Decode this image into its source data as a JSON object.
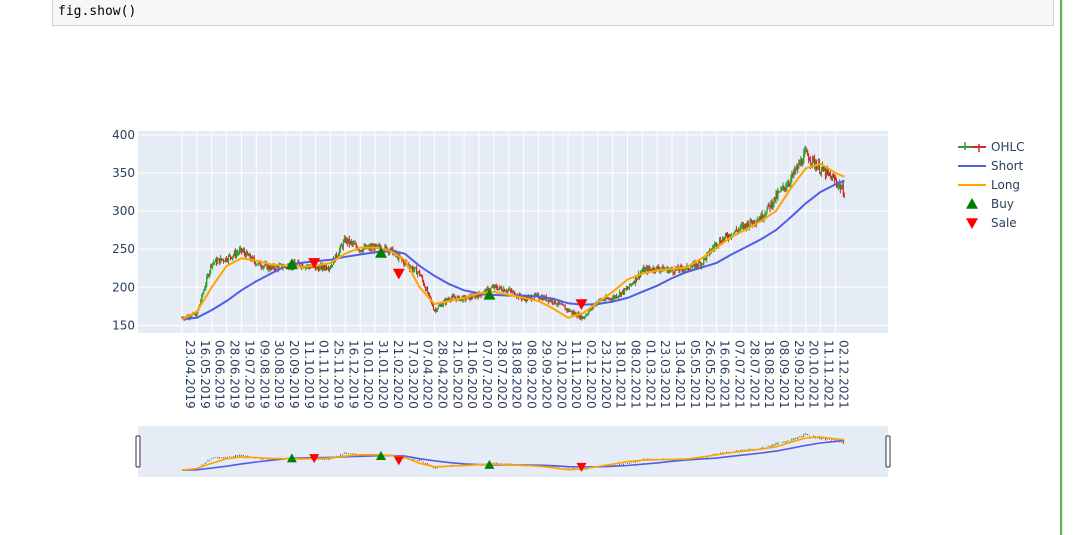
{
  "notebook": {
    "code_line": "fig.show()"
  },
  "colors": {
    "plot_bg": "#e5ecf6",
    "grid": "#ffffff",
    "up": "#2ca02c",
    "down": "#d62728",
    "short": "#4f5ee6",
    "long": "#ffa500",
    "buy": "#008000",
    "sale": "#ff0000",
    "tick_text": "#2a3f5f",
    "cell_border": "#cfcfcf",
    "cell_bg": "#f7f7f7",
    "accent_rule": "#5cb85c"
  },
  "chart_data": {
    "type": "candlestick",
    "xaxis_type": "category",
    "yaxis": {
      "range": [
        140,
        405
      ],
      "ticks": [
        150,
        200,
        250,
        300,
        350,
        400
      ]
    },
    "legend": {
      "position": "top-right",
      "items": [
        {
          "name": "OHLC",
          "symbol": "candle"
        },
        {
          "name": "Short",
          "symbol": "line",
          "color": "#4f5ee6"
        },
        {
          "name": "Long",
          "symbol": "line",
          "color": "#ffa500"
        },
        {
          "name": "Buy",
          "symbol": "triangle-up",
          "color": "#008000"
        },
        {
          "name": "Sale",
          "symbol": "triangle-down",
          "color": "#ff0000"
        }
      ]
    },
    "x_tick_labels": [
      "23.04.2019",
      "16.05.2019",
      "06.06.2019",
      "28.06.2019",
      "19.07.2019",
      "09.08.2019",
      "30.08.2019",
      "20.09.2019",
      "11.10.2019",
      "01.11.2019",
      "25.11.2019",
      "16.12.2019",
      "10.01.2020",
      "31.01.2020",
      "21.02.2020",
      "17.03.2020",
      "07.04.2020",
      "28.04.2020",
      "21.05.2020",
      "11.06.2020",
      "07.07.2020",
      "28.07.2020",
      "18.08.2020",
      "08.09.2020",
      "29.09.2020",
      "20.10.2020",
      "11.11.2020",
      "02.12.2020",
      "23.12.2020",
      "18.01.2021",
      "08.02.2021",
      "01.03.2021",
      "23.03.2021",
      "13.04.2021",
      "05.05.2021",
      "26.05.2021",
      "16.06.2021",
      "07.07.2021",
      "28.07.2021",
      "18.08.2021",
      "08.09.2021",
      "29.09.2021",
      "20.10.2021",
      "11.11.2021",
      "02.12.2021"
    ],
    "close_anchors": [
      [
        0,
        160
      ],
      [
        1,
        165
      ],
      [
        2,
        232
      ],
      [
        3,
        238
      ],
      [
        4,
        248
      ],
      [
        5,
        232
      ],
      [
        6,
        225
      ],
      [
        7,
        228
      ],
      [
        8,
        230
      ],
      [
        9,
        225
      ],
      [
        10,
        228
      ],
      [
        11,
        262
      ],
      [
        12,
        250
      ],
      [
        13,
        252
      ],
      [
        14,
        250
      ],
      [
        15,
        232
      ],
      [
        16,
        218
      ],
      [
        17,
        170
      ],
      [
        18,
        186
      ],
      [
        19,
        185
      ],
      [
        20,
        190
      ],
      [
        21,
        200
      ],
      [
        22,
        196
      ],
      [
        23,
        185
      ],
      [
        24,
        188
      ],
      [
        25,
        182
      ],
      [
        26,
        170
      ],
      [
        27,
        160
      ],
      [
        28,
        182
      ],
      [
        29,
        186
      ],
      [
        30,
        198
      ],
      [
        31,
        222
      ],
      [
        32,
        225
      ],
      [
        33,
        222
      ],
      [
        34,
        225
      ],
      [
        35,
        232
      ],
      [
        36,
        258
      ],
      [
        37,
        270
      ],
      [
        38,
        282
      ],
      [
        39,
        292
      ],
      [
        40,
        318
      ],
      [
        41,
        342
      ],
      [
        42,
        375
      ],
      [
        43,
        355
      ],
      [
        44,
        340
      ],
      [
        44.6,
        325
      ]
    ],
    "short_ma": [
      [
        0,
        158
      ],
      [
        1,
        160
      ],
      [
        2,
        170
      ],
      [
        3,
        182
      ],
      [
        4,
        196
      ],
      [
        5,
        208
      ],
      [
        6,
        218
      ],
      [
        7,
        228
      ],
      [
        8,
        232
      ],
      [
        9,
        234
      ],
      [
        10,
        236
      ],
      [
        11,
        240
      ],
      [
        12,
        243
      ],
      [
        13,
        246
      ],
      [
        14,
        248
      ],
      [
        15,
        244
      ],
      [
        16,
        228
      ],
      [
        17,
        215
      ],
      [
        18,
        204
      ],
      [
        19,
        196
      ],
      [
        20,
        192
      ],
      [
        21,
        190
      ],
      [
        22,
        189
      ],
      [
        23,
        189
      ],
      [
        24,
        188
      ],
      [
        25,
        185
      ],
      [
        26,
        179
      ],
      [
        27,
        177
      ],
      [
        28,
        178
      ],
      [
        29,
        181
      ],
      [
        30,
        186
      ],
      [
        31,
        194
      ],
      [
        32,
        202
      ],
      [
        33,
        212
      ],
      [
        34,
        220
      ],
      [
        35,
        226
      ],
      [
        36,
        232
      ],
      [
        37,
        243
      ],
      [
        38,
        253
      ],
      [
        39,
        263
      ],
      [
        40,
        275
      ],
      [
        41,
        292
      ],
      [
        42,
        310
      ],
      [
        43,
        325
      ],
      [
        44,
        335
      ],
      [
        44.6,
        340
      ]
    ],
    "long_ma": [
      [
        0,
        158
      ],
      [
        1,
        168
      ],
      [
        2,
        200
      ],
      [
        3,
        228
      ],
      [
        4,
        238
      ],
      [
        5,
        235
      ],
      [
        6,
        230
      ],
      [
        7,
        228
      ],
      [
        8,
        227
      ],
      [
        9,
        228
      ],
      [
        10,
        232
      ],
      [
        11,
        244
      ],
      [
        12,
        252
      ],
      [
        13,
        252
      ],
      [
        14,
        248
      ],
      [
        15,
        236
      ],
      [
        16,
        200
      ],
      [
        17,
        178
      ],
      [
        18,
        182
      ],
      [
        19,
        186
      ],
      [
        20,
        192
      ],
      [
        21,
        194
      ],
      [
        22,
        190
      ],
      [
        23,
        186
      ],
      [
        24,
        182
      ],
      [
        25,
        172
      ],
      [
        26,
        160
      ],
      [
        27,
        166
      ],
      [
        28,
        180
      ],
      [
        29,
        194
      ],
      [
        30,
        210
      ],
      [
        31,
        218
      ],
      [
        32,
        222
      ],
      [
        33,
        224
      ],
      [
        34,
        226
      ],
      [
        35,
        238
      ],
      [
        36,
        252
      ],
      [
        37,
        266
      ],
      [
        38,
        276
      ],
      [
        39,
        287
      ],
      [
        40,
        300
      ],
      [
        41,
        330
      ],
      [
        42,
        356
      ],
      [
        43,
        362
      ],
      [
        44,
        350
      ],
      [
        44.6,
        345
      ]
    ],
    "buy_signals": [
      [
        7.4,
        230
      ],
      [
        13.4,
        245
      ],
      [
        20.7,
        190
      ]
    ],
    "sale_signals": [
      [
        8.9,
        232
      ],
      [
        14.6,
        218
      ],
      [
        26.9,
        178
      ]
    ]
  }
}
